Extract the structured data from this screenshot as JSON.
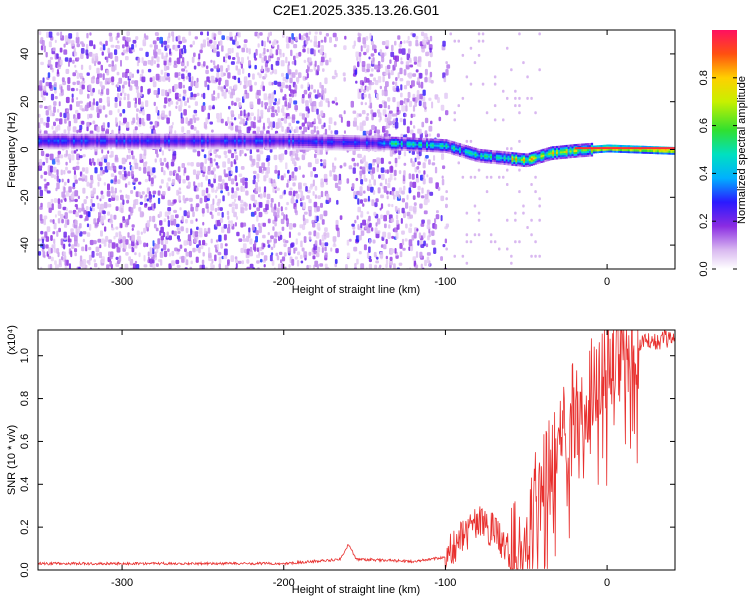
{
  "title": "C2E1.2025.335.13.26.G01",
  "chart_data": [
    {
      "type": "heatmap",
      "xlabel": "Height of straight line (km)",
      "ylabel": "Frequency (Hz)",
      "xlim": [
        -352,
        42
      ],
      "ylim": [
        -50,
        50
      ],
      "xticks": [
        -300,
        -200,
        -100,
        0
      ],
      "yticks": [
        -40,
        -20,
        0,
        20,
        40
      ],
      "colorbar": {
        "label": "Normalized spectral amplitude",
        "range": [
          0,
          1
        ],
        "ticks": [
          0.0,
          0.2,
          0.4,
          0.6,
          0.8
        ],
        "tick_labels": [
          "0.0",
          "0.2",
          "0.4",
          "0.6",
          "0.8"
        ]
      },
      "ridge": {
        "description_points_km_hz": [
          [
            -330,
            4
          ],
          [
            -200,
            4
          ],
          [
            -130,
            3
          ],
          [
            -100,
            2
          ],
          [
            -80,
            -2
          ],
          [
            -65,
            -3
          ],
          [
            -50,
            -4
          ],
          [
            -35,
            -1
          ],
          [
            -20,
            0
          ],
          [
            0,
            1
          ],
          [
            40,
            0
          ]
        ]
      }
    },
    {
      "type": "line",
      "xlabel": "Height of straight line (km)",
      "ylabel": "SNR (10 * v/v)",
      "scale_label": "(x10⁴)",
      "xlim": [
        -352,
        42
      ],
      "ylim": [
        0,
        1.12
      ],
      "xticks": [
        -300,
        -200,
        -100,
        0
      ],
      "yticks": [
        0.0,
        0.2,
        0.4,
        0.6,
        0.8,
        1.0
      ],
      "ytick_labels": [
        "0.0",
        "0.2",
        "0.4",
        "0.6",
        "0.8",
        "1.0"
      ],
      "series": [
        {
          "name": "SNR",
          "color": "#e8302e",
          "envelope_km_value": [
            [
              -352,
              0.03
            ],
            [
              -200,
              0.03
            ],
            [
              -165,
              0.05
            ],
            [
              -160,
              0.12
            ],
            [
              -155,
              0.05
            ],
            [
              -120,
              0.04
            ],
            [
              -100,
              0.06
            ],
            [
              -90,
              0.15
            ],
            [
              -80,
              0.22
            ],
            [
              -70,
              0.18
            ],
            [
              -60,
              0.08
            ],
            [
              -50,
              0.2
            ],
            [
              -40,
              0.4
            ],
            [
              -30,
              0.6
            ],
            [
              -20,
              0.75
            ],
            [
              -10,
              0.85
            ],
            [
              0,
              0.95
            ],
            [
              10,
              1.03
            ],
            [
              20,
              1.06
            ],
            [
              42,
              1.08
            ]
          ]
        }
      ]
    }
  ],
  "colors": {
    "background": "#ffffff",
    "snr_line": "#e8302e",
    "axis": "#000000"
  }
}
